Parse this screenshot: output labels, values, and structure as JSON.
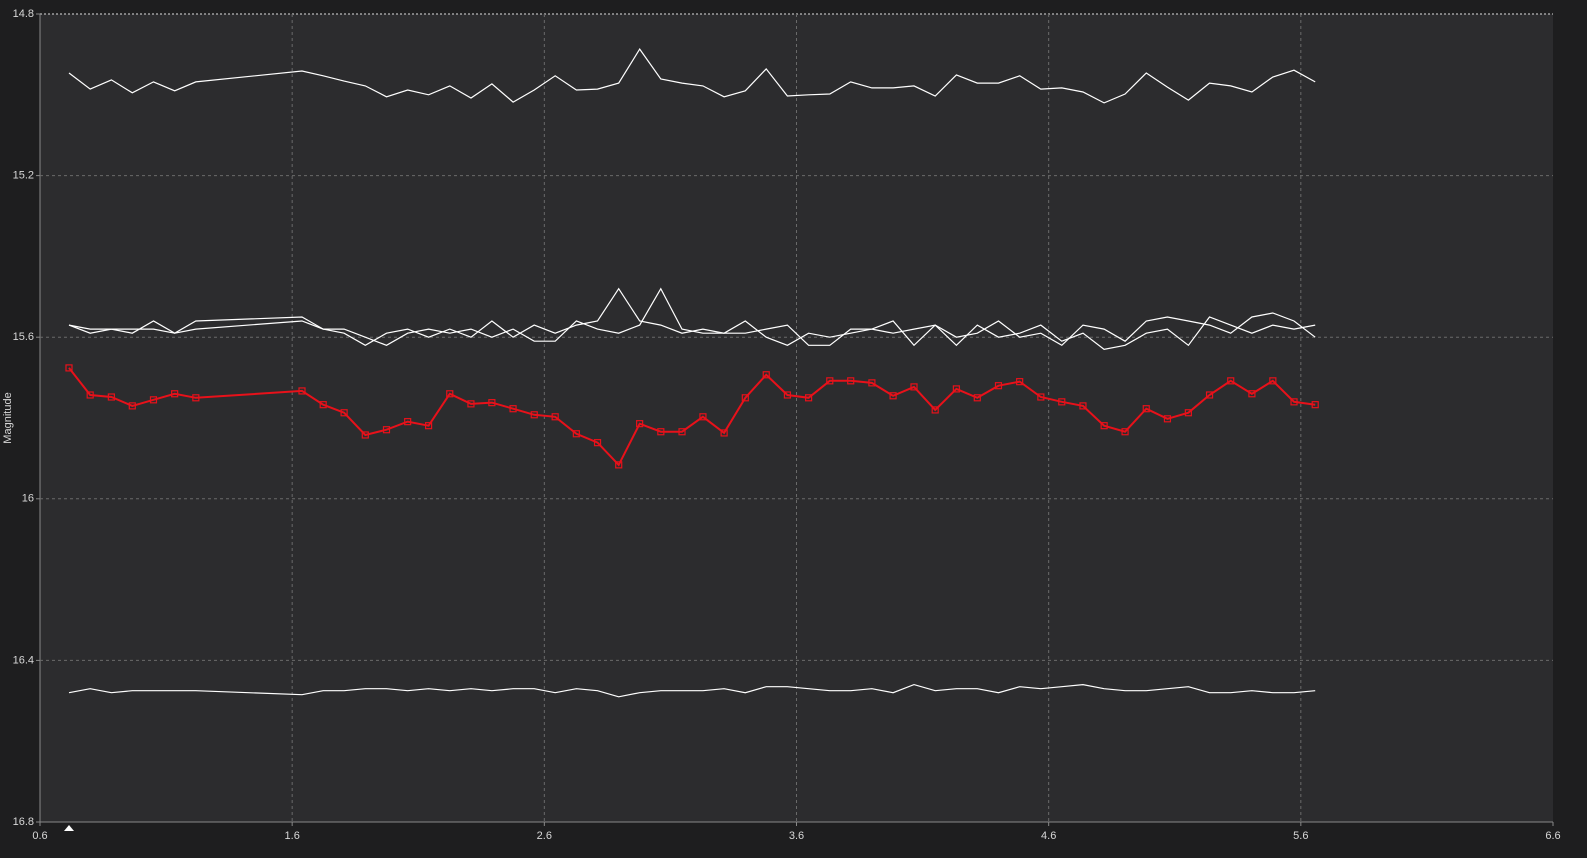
{
  "chart_data": {
    "type": "line",
    "y_axis_label": "Magnitude",
    "y_inverted": true,
    "xlim": [
      0.6,
      6.6
    ],
    "xticks": [
      0.6,
      1.6,
      2.6,
      3.6,
      4.6,
      5.6,
      6.6
    ],
    "ylim": [
      14.8,
      16.8
    ],
    "yticks": [
      14.8,
      15.2,
      15.6,
      16,
      16.4,
      16.8
    ],
    "grid": true,
    "x": [
      0.715,
      0.799,
      0.883,
      0.966,
      1.05,
      1.134,
      1.218,
      1.639,
      1.723,
      1.806,
      1.89,
      1.974,
      2.058,
      2.141,
      2.225,
      2.309,
      2.392,
      2.476,
      2.56,
      2.643,
      2.727,
      2.811,
      2.895,
      2.978,
      3.062,
      3.146,
      3.229,
      3.313,
      3.397,
      3.48,
      3.564,
      3.648,
      3.732,
      3.815,
      3.899,
      3.983,
      4.066,
      4.15,
      4.234,
      4.317,
      4.401,
      4.485,
      4.569,
      4.652,
      4.736,
      4.82,
      4.903,
      4.987,
      5.071,
      5.154,
      5.238,
      5.322,
      5.406,
      5.489,
      5.573,
      5.657
    ],
    "series": [
      {
        "color": "#ffffff",
        "markers": false,
        "values": [
          14.946,
          14.986,
          14.963,
          14.995,
          14.968,
          14.99,
          14.968,
          14.941,
          14.953,
          14.966,
          14.978,
          15.005,
          14.988,
          15.0,
          14.978,
          15.008,
          14.973,
          15.018,
          14.988,
          14.953,
          14.988,
          14.986,
          14.971,
          14.887,
          14.961,
          14.971,
          14.978,
          15.005,
          14.99,
          14.936,
          15.003,
          15.0,
          14.998,
          14.968,
          14.983,
          14.983,
          14.978,
          15.003,
          14.951,
          14.971,
          14.971,
          14.953,
          14.986,
          14.983,
          14.993,
          15.02,
          14.998,
          14.946,
          14.981,
          15.013,
          14.971,
          14.978,
          14.993,
          14.956,
          14.939,
          14.968
        ]
      },
      {
        "color": "#ffffff",
        "markers": false,
        "values": [
          15.57,
          15.59,
          15.58,
          15.59,
          15.56,
          15.59,
          15.56,
          15.55,
          15.58,
          15.59,
          15.62,
          15.59,
          15.58,
          15.6,
          15.58,
          15.6,
          15.56,
          15.6,
          15.57,
          15.59,
          15.57,
          15.56,
          15.48,
          15.56,
          15.57,
          15.59,
          15.58,
          15.59,
          15.56,
          15.6,
          15.62,
          15.59,
          15.6,
          15.59,
          15.58,
          15.56,
          15.62,
          15.57,
          15.6,
          15.59,
          15.56,
          15.6,
          15.59,
          15.62,
          15.57,
          15.58,
          15.61,
          15.56,
          15.55,
          15.56,
          15.57,
          15.59,
          15.55,
          15.54,
          15.56,
          15.6
        ]
      },
      {
        "color": "#ffffff",
        "markers": false,
        "values": [
          15.57,
          15.58,
          15.58,
          15.58,
          15.58,
          15.59,
          15.58,
          15.56,
          15.58,
          15.58,
          15.6,
          15.62,
          15.59,
          15.58,
          15.59,
          15.58,
          15.6,
          15.58,
          15.61,
          15.61,
          15.56,
          15.58,
          15.59,
          15.57,
          15.48,
          15.58,
          15.59,
          15.59,
          15.59,
          15.58,
          15.57,
          15.62,
          15.62,
          15.58,
          15.58,
          15.59,
          15.58,
          15.57,
          15.62,
          15.57,
          15.6,
          15.59,
          15.57,
          15.61,
          15.59,
          15.63,
          15.62,
          15.59,
          15.58,
          15.62,
          15.55,
          15.57,
          15.59,
          15.57,
          15.58,
          15.57
        ]
      },
      {
        "color": "#e8111a",
        "markers": true,
        "values": [
          15.676,
          15.743,
          15.748,
          15.77,
          15.755,
          15.74,
          15.75,
          15.733,
          15.767,
          15.787,
          15.842,
          15.829,
          15.809,
          15.819,
          15.74,
          15.765,
          15.762,
          15.777,
          15.792,
          15.797,
          15.839,
          15.861,
          15.916,
          15.814,
          15.834,
          15.834,
          15.797,
          15.837,
          15.75,
          15.693,
          15.743,
          15.75,
          15.708,
          15.708,
          15.713,
          15.745,
          15.723,
          15.78,
          15.728,
          15.75,
          15.72,
          15.71,
          15.748,
          15.76,
          15.77,
          15.819,
          15.834,
          15.777,
          15.802,
          15.787,
          15.743,
          15.708,
          15.74,
          15.708,
          15.76,
          15.767
        ]
      },
      {
        "color": "#ffffff",
        "markers": false,
        "values": [
          16.48,
          16.47,
          16.48,
          16.475,
          16.475,
          16.475,
          16.475,
          16.485,
          16.475,
          16.475,
          16.47,
          16.47,
          16.475,
          16.47,
          16.475,
          16.47,
          16.475,
          16.47,
          16.47,
          16.48,
          16.47,
          16.475,
          16.49,
          16.48,
          16.475,
          16.475,
          16.475,
          16.47,
          16.48,
          16.465,
          16.465,
          16.47,
          16.475,
          16.475,
          16.47,
          16.48,
          16.46,
          16.475,
          16.47,
          16.47,
          16.48,
          16.465,
          16.47,
          16.465,
          16.46,
          16.47,
          16.475,
          16.475,
          16.47,
          16.465,
          16.48,
          16.48,
          16.475,
          16.48,
          16.48,
          16.475
        ]
      }
    ]
  }
}
